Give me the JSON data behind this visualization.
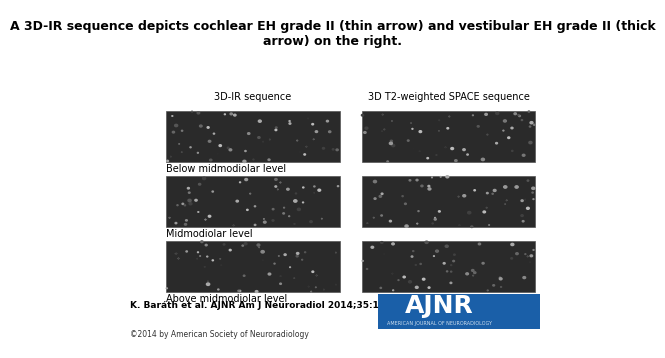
{
  "title": "A 3D-IR sequence depicts cochlear EH grade II (thin arrow) and vestibular EH grade II (thick\narrow) on the right.",
  "title_fontsize": 9,
  "col_labels": [
    "3D-IR sequence",
    "3D T2-weighted SPACE sequence"
  ],
  "row_labels": [
    "Below midmodiolar level",
    "Midmodiolar level",
    "Above midmodiolar level"
  ],
  "citation": "K. Baráth et al. AJNR Am J Neuroradiol 2014;35:1387-1392",
  "copyright": "©2014 by American Society of Neuroradiology",
  "page_bg": "#ffffff",
  "ajnr_box_color": "#1a5fa8",
  "ajnr_text": "AJNR",
  "ajnr_subtext": "AMERICAN JOURNAL OF NEURORADIOLOGY",
  "col_label_fontsize": 7,
  "row_label_fontsize": 7,
  "citation_fontsize": 6.5,
  "copyright_fontsize": 5.5
}
